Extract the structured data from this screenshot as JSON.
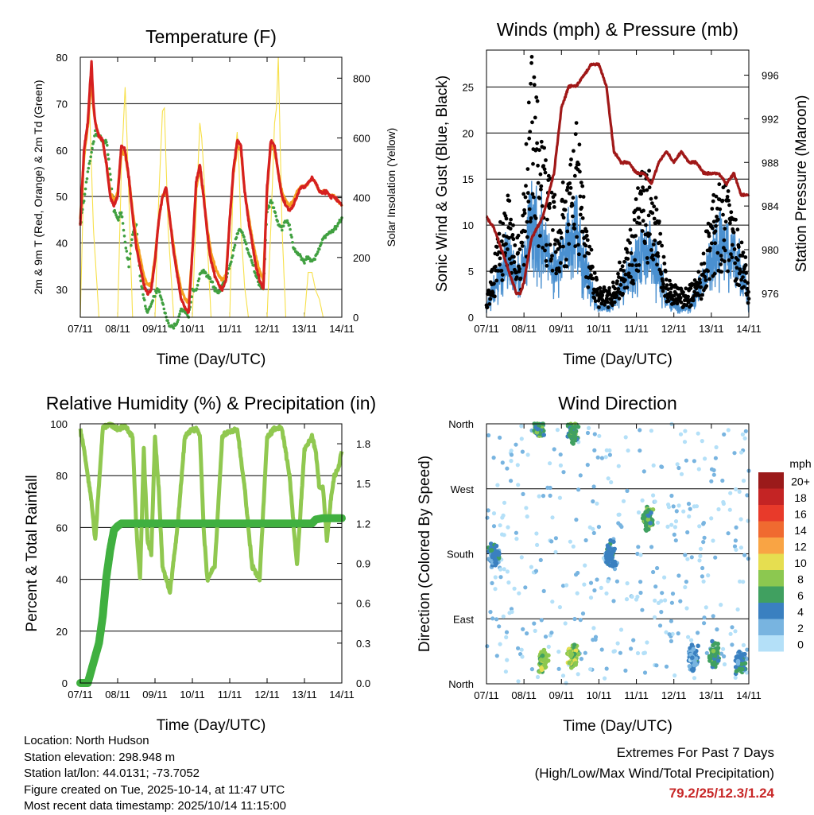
{
  "chart_data": [
    {
      "id": "temp",
      "type": "line",
      "title": "Temperature (F)",
      "xlabel": "Time (Day/UTC)",
      "ylabel": "2m & 9m T (Red, Orange) & 2m Td (Green)",
      "y2label": "Solar Insolation (Yellow)",
      "xticks": [
        "07/11",
        "08/11",
        "09/11",
        "10/11",
        "11/11",
        "12/11",
        "13/11",
        "14/11"
      ],
      "ylim": [
        24,
        80
      ],
      "yticks": [
        30,
        40,
        50,
        60,
        70,
        80
      ],
      "y2lim": [
        0,
        870
      ],
      "y2ticks": [
        0,
        200,
        400,
        600,
        800
      ],
      "series": [
        {
          "name": "2m T",
          "color": "#d62020",
          "x": [
            0,
            0.1,
            0.2,
            0.3,
            0.35,
            0.4,
            0.5,
            0.6,
            0.7,
            0.8,
            0.9,
            1.0,
            1.1,
            1.2,
            1.3,
            1.4,
            1.5,
            1.6,
            1.7,
            1.8,
            1.9,
            2.0,
            2.1,
            2.2,
            2.3,
            2.4,
            2.5,
            2.6,
            2.7,
            2.8,
            2.9,
            3.0,
            3.1,
            3.2,
            3.3,
            3.4,
            3.5,
            3.6,
            3.7,
            3.8,
            3.9,
            4.0,
            4.1,
            4.2,
            4.3,
            4.4,
            4.5,
            4.6,
            4.7,
            4.8,
            4.9,
            5.0,
            5.1,
            5.2,
            5.3,
            5.4,
            5.5,
            5.6,
            5.7,
            5.8,
            5.9,
            6.0,
            6.1,
            6.2,
            6.3,
            6.4,
            6.5,
            6.6,
            6.7,
            6.8,
            6.9,
            7.0
          ],
          "y": [
            44,
            60,
            66,
            79,
            70,
            66,
            63,
            62,
            57,
            50,
            48,
            50,
            61,
            60,
            54,
            46,
            39,
            35,
            31,
            29,
            30,
            36,
            45,
            50,
            52,
            45,
            38,
            33,
            28,
            26,
            25,
            38,
            53,
            57,
            50,
            42,
            36,
            33,
            31,
            30,
            32,
            45,
            56,
            62,
            61,
            51,
            45,
            40,
            35,
            32,
            30,
            52,
            62,
            61,
            55,
            50,
            48,
            47,
            48,
            50,
            52,
            52,
            53,
            54,
            53,
            51,
            51,
            51,
            50,
            50,
            49,
            48
          ]
        },
        {
          "name": "9m T",
          "color": "#f5a020",
          "x": [
            0,
            0.1,
            0.2,
            0.3,
            0.35,
            0.4,
            0.5,
            0.6,
            0.7,
            0.8,
            0.9,
            1.0,
            1.1,
            1.2,
            1.3,
            1.4,
            1.5,
            1.6,
            1.7,
            1.8,
            1.9,
            2.0,
            2.1,
            2.2,
            2.3,
            2.4,
            2.5,
            2.6,
            2.7,
            2.8,
            2.9,
            3.0,
            3.1,
            3.2,
            3.3,
            3.4,
            3.5,
            3.6,
            3.7,
            3.8,
            3.9,
            4.0,
            4.1,
            4.2,
            4.3,
            4.4,
            4.5,
            4.6,
            4.7,
            4.8,
            4.9,
            5.0,
            5.1,
            5.2,
            5.3,
            5.4,
            5.5,
            5.6,
            5.7,
            5.8,
            5.9,
            6.0,
            6.1,
            6.2,
            6.3,
            6.4,
            6.5,
            6.6,
            6.7,
            6.8,
            6.9,
            7.0
          ],
          "y": [
            45,
            59,
            65,
            76,
            69,
            66,
            63,
            62,
            57,
            51,
            49,
            51,
            60,
            59,
            54,
            47,
            41,
            37,
            33,
            31,
            31,
            37,
            45,
            50,
            51,
            45,
            39,
            34,
            30,
            28,
            27,
            38,
            52,
            56,
            50,
            43,
            38,
            35,
            33,
            32,
            33,
            45,
            55,
            61,
            60,
            51,
            46,
            41,
            37,
            34,
            32,
            51,
            61,
            60,
            55,
            51,
            49,
            48,
            49,
            51,
            52,
            52,
            53,
            54,
            53,
            51,
            51,
            51,
            50,
            50,
            49,
            48
          ]
        },
        {
          "name": "2m Td",
          "color": "#40a040",
          "x": [
            0,
            0.2,
            0.4,
            0.5,
            0.6,
            0.7,
            0.8,
            0.9,
            1.0,
            1.1,
            1.2,
            1.3,
            1.4,
            1.5,
            1.6,
            1.7,
            1.8,
            1.9,
            2.0,
            2.1,
            2.2,
            2.3,
            2.4,
            2.5,
            2.6,
            2.7,
            2.8,
            2.9,
            3.0,
            3.1,
            3.2,
            3.3,
            3.4,
            3.5,
            3.6,
            3.7,
            3.8,
            3.9,
            4.0,
            4.1,
            4.2,
            4.3,
            4.4,
            4.5,
            4.6,
            4.7,
            4.8,
            4.9,
            5.0,
            5.1,
            5.2,
            5.3,
            5.4,
            5.5,
            5.6,
            5.7,
            5.8,
            5.9,
            6.0,
            6.1,
            6.2,
            6.3,
            6.4,
            6.5,
            6.6,
            6.7,
            6.8,
            6.9,
            7.0
          ],
          "y": [
            44,
            55,
            64,
            63,
            62,
            62,
            55,
            47,
            45,
            47,
            40,
            35,
            42,
            44,
            33,
            28,
            25,
            27,
            29,
            30,
            27,
            24,
            22,
            22,
            23,
            26,
            25,
            24,
            30,
            30,
            33,
            34,
            33,
            32,
            30,
            29,
            31,
            32,
            35,
            38,
            42,
            43,
            41,
            38,
            36,
            33,
            31,
            30,
            47,
            49,
            47,
            44,
            43,
            45,
            44,
            39,
            38,
            37,
            36,
            37,
            36,
            37,
            39,
            41,
            42,
            42,
            43,
            44,
            45
          ]
        },
        {
          "name": "Solar",
          "color": "#f7e04a",
          "axis": "y2",
          "x": [
            0,
            0.1,
            0.25,
            0.35,
            0.5,
            1.0,
            1.1,
            1.2,
            1.25,
            1.3,
            1.4,
            2.0,
            2.1,
            2.2,
            2.25,
            2.35,
            2.5,
            3.0,
            3.1,
            3.2,
            3.25,
            3.3,
            3.4,
            3.5,
            4.0,
            4.1,
            4.2,
            4.25,
            4.3,
            4.4,
            4.5,
            5.0,
            5.1,
            5.2,
            5.25,
            5.3,
            5.4,
            5.5,
            6.0,
            6.1,
            6.2,
            6.25,
            6.3,
            6.4,
            6.5,
            7.0
          ],
          "y": [
            0,
            500,
            700,
            300,
            0,
            0,
            500,
            770,
            600,
            400,
            0,
            0,
            400,
            690,
            700,
            300,
            0,
            0,
            350,
            650,
            600,
            500,
            250,
            0,
            0,
            500,
            620,
            500,
            300,
            100,
            0,
            0,
            300,
            650,
            700,
            870,
            300,
            0,
            0,
            150,
            150,
            120,
            90,
            60,
            0,
            0
          ]
        }
      ]
    },
    {
      "id": "wind",
      "type": "scatter",
      "title": "Winds (mph) & Pressure (mb)",
      "xlabel": "Time (Day/UTC)",
      "ylabel": "Sonic Wind & Gust (Blue, Black)",
      "y2label": "Station Pressure (Maroon)",
      "xticks": [
        "07/11",
        "08/11",
        "09/11",
        "10/11",
        "11/11",
        "12/11",
        "13/11",
        "14/11"
      ],
      "ylim": [
        0,
        29
      ],
      "yticks": [
        0,
        5,
        10,
        15,
        20,
        25
      ],
      "y2lim": [
        973.8,
        998.3
      ],
      "y2ticks": [
        976,
        980,
        984,
        988,
        992,
        996
      ],
      "series": [
        {
          "name": "Gust",
          "color": "#000000",
          "x": [
            0,
            0.3,
            0.6,
            0.9,
            1.2,
            1.5,
            1.8,
            2.1,
            2.4,
            2.7,
            3.0,
            3.3,
            3.6,
            3.9,
            4.2,
            4.5,
            4.8,
            5.1,
            5.4,
            5.7,
            6.0,
            6.3,
            6.6,
            6.9,
            7.0
          ],
          "y": [
            2,
            8,
            14,
            7,
            26,
            18,
            12,
            14,
            20,
            9,
            3,
            3,
            6,
            10,
            16,
            13,
            4,
            3,
            3,
            5,
            12,
            14,
            11,
            7,
            3
          ]
        },
        {
          "name": "Sonic Wind",
          "color": "#4a90d0",
          "x": [
            0,
            0.3,
            0.6,
            0.9,
            1.2,
            1.5,
            1.8,
            2.1,
            2.4,
            2.7,
            3.0,
            3.3,
            3.6,
            3.9,
            4.2,
            4.5,
            4.8,
            5.1,
            5.4,
            5.7,
            6.0,
            6.3,
            6.6,
            6.9,
            7.0
          ],
          "y": [
            1,
            4,
            6,
            4,
            10,
            8,
            5,
            7,
            9,
            4,
            1,
            1,
            3,
            5,
            7,
            6,
            2,
            1,
            1,
            3,
            6,
            8,
            6,
            4,
            1
          ]
        },
        {
          "name": "Pressure",
          "color": "#a01818",
          "axis": "y2",
          "x": [
            0,
            0.2,
            0.4,
            0.6,
            0.8,
            0.9,
            1.0,
            1.2,
            1.5,
            1.8,
            2.0,
            2.2,
            2.4,
            2.6,
            2.8,
            3.0,
            3.2,
            3.4,
            3.6,
            3.8,
            4.0,
            4.2,
            4.4,
            4.6,
            4.8,
            5.0,
            5.2,
            5.4,
            5.6,
            5.8,
            6.0,
            6.2,
            6.4,
            6.6,
            6.8,
            7.0
          ],
          "y": [
            983,
            982,
            980,
            978,
            976,
            976,
            977,
            981,
            983,
            987,
            993,
            995,
            995,
            996,
            997,
            997,
            995,
            989,
            988,
            988,
            987,
            987,
            986,
            988,
            989,
            988,
            989,
            988,
            988,
            987,
            987,
            987,
            986,
            987,
            985,
            985
          ]
        }
      ]
    },
    {
      "id": "rh",
      "type": "line",
      "title": "Relative Humidity (%) & Precipitation (in)",
      "xlabel": "Time (Day/UTC)",
      "ylabel": "Percent & Total Rainfall",
      "xticks": [
        "07/11",
        "08/11",
        "09/11",
        "10/11",
        "11/11",
        "12/11",
        "13/11",
        "14/11"
      ],
      "ylim": [
        0,
        100
      ],
      "yticks": [
        0,
        20,
        40,
        60,
        80,
        100
      ],
      "y2lim": [
        0,
        1.95
      ],
      "y2ticks": [
        "0.0",
        "0.3",
        "0.6",
        "0.9",
        "1.2",
        "1.5",
        "1.8"
      ],
      "series": [
        {
          "name": "Relative Humidity",
          "color": "#90c850",
          "x": [
            0,
            0.1,
            0.3,
            0.4,
            0.6,
            0.8,
            1.0,
            1.2,
            1.4,
            1.5,
            1.6,
            1.7,
            1.8,
            1.9,
            2.0,
            2.1,
            2.2,
            2.4,
            2.6,
            2.8,
            3.0,
            3.1,
            3.2,
            3.3,
            3.4,
            3.6,
            3.8,
            4.0,
            4.2,
            4.4,
            4.6,
            4.8,
            5.0,
            5.2,
            5.4,
            5.6,
            5.8,
            6.0,
            6.2,
            6.3,
            6.4,
            6.5,
            6.6,
            6.7,
            6.8,
            6.9,
            7.0
          ],
          "y": [
            98,
            90,
            70,
            55,
            98,
            100,
            98,
            99,
            95,
            60,
            40,
            90,
            55,
            50,
            95,
            75,
            45,
            35,
            60,
            95,
            98,
            98,
            96,
            60,
            40,
            45,
            95,
            97,
            98,
            75,
            45,
            40,
            95,
            98,
            98,
            80,
            45,
            90,
            95,
            90,
            75,
            75,
            55,
            70,
            80,
            82,
            90
          ]
        },
        {
          "name": "Total Rainfall",
          "color": "#40b040",
          "axis": "y2",
          "x": [
            0,
            0.2,
            0.3,
            0.4,
            0.5,
            0.6,
            0.7,
            0.8,
            0.9,
            1.0,
            1.1,
            2.0,
            3.0,
            4.0,
            5.0,
            6.0,
            6.2,
            6.3,
            6.5,
            7.0
          ],
          "y": [
            0,
            0,
            0.1,
            0.2,
            0.3,
            0.5,
            0.8,
            1.0,
            1.15,
            1.18,
            1.2,
            1.2,
            1.2,
            1.2,
            1.2,
            1.2,
            1.2,
            1.23,
            1.24,
            1.24
          ]
        }
      ]
    },
    {
      "id": "wdir",
      "type": "scatter",
      "title": "Wind Direction",
      "xlabel": "Time (Day/UTC)",
      "ylabel": "Direction (Colored By Speed)",
      "xticks": [
        "07/11",
        "08/11",
        "09/11",
        "10/11",
        "11/11",
        "12/11",
        "13/11",
        "14/11"
      ],
      "ylim": [
        0,
        360
      ],
      "ytick_labels": [
        "North",
        "East",
        "South",
        "West",
        "North"
      ],
      "colorbar_title": "mph",
      "colorbar_labels": [
        "20+",
        "18",
        "16",
        "14",
        "12",
        "10",
        "8",
        "6",
        "4",
        "2",
        "0"
      ],
      "colorbar_colors": [
        "#9b1a1a",
        "#c42424",
        "#e83a2a",
        "#f06a30",
        "#f9a444",
        "#e6de50",
        "#8cc850",
        "#40a060",
        "#3a80c0",
        "#78b4e0",
        "#b4e0f8"
      ],
      "clusters": [
        {
          "x": 0.2,
          "y": 180,
          "speed": 4
        },
        {
          "x": 1.4,
          "y": 360,
          "speed": 6
        },
        {
          "x": 1.5,
          "y": 30,
          "speed": 8
        },
        {
          "x": 2.3,
          "y": 350,
          "speed": 6
        },
        {
          "x": 2.3,
          "y": 40,
          "speed": 8
        },
        {
          "x": 3.3,
          "y": 180,
          "speed": 4
        },
        {
          "x": 4.3,
          "y": 230,
          "speed": 6
        },
        {
          "x": 5.5,
          "y": 35,
          "speed": 3
        },
        {
          "x": 6.1,
          "y": 40,
          "speed": 6
        },
        {
          "x": 6.8,
          "y": 30,
          "speed": 4
        }
      ]
    }
  ],
  "info": {
    "location": "Location: North Hudson",
    "elevation": "Station elevation: 298.948 m",
    "latlon": "Station lat/lon: 44.0131; -73.7052",
    "created": "Figure created on Tue, 2025-10-14, at 11:47 UTC",
    "recent": "Most recent data timestamp: 2025/10/14 11:15:00"
  },
  "extremes": {
    "title": "Extremes For Past 7 Days",
    "subtitle": "(High/Low/Max Wind/Total Precipitation)",
    "values": "79.2/25/12.3/1.24"
  }
}
